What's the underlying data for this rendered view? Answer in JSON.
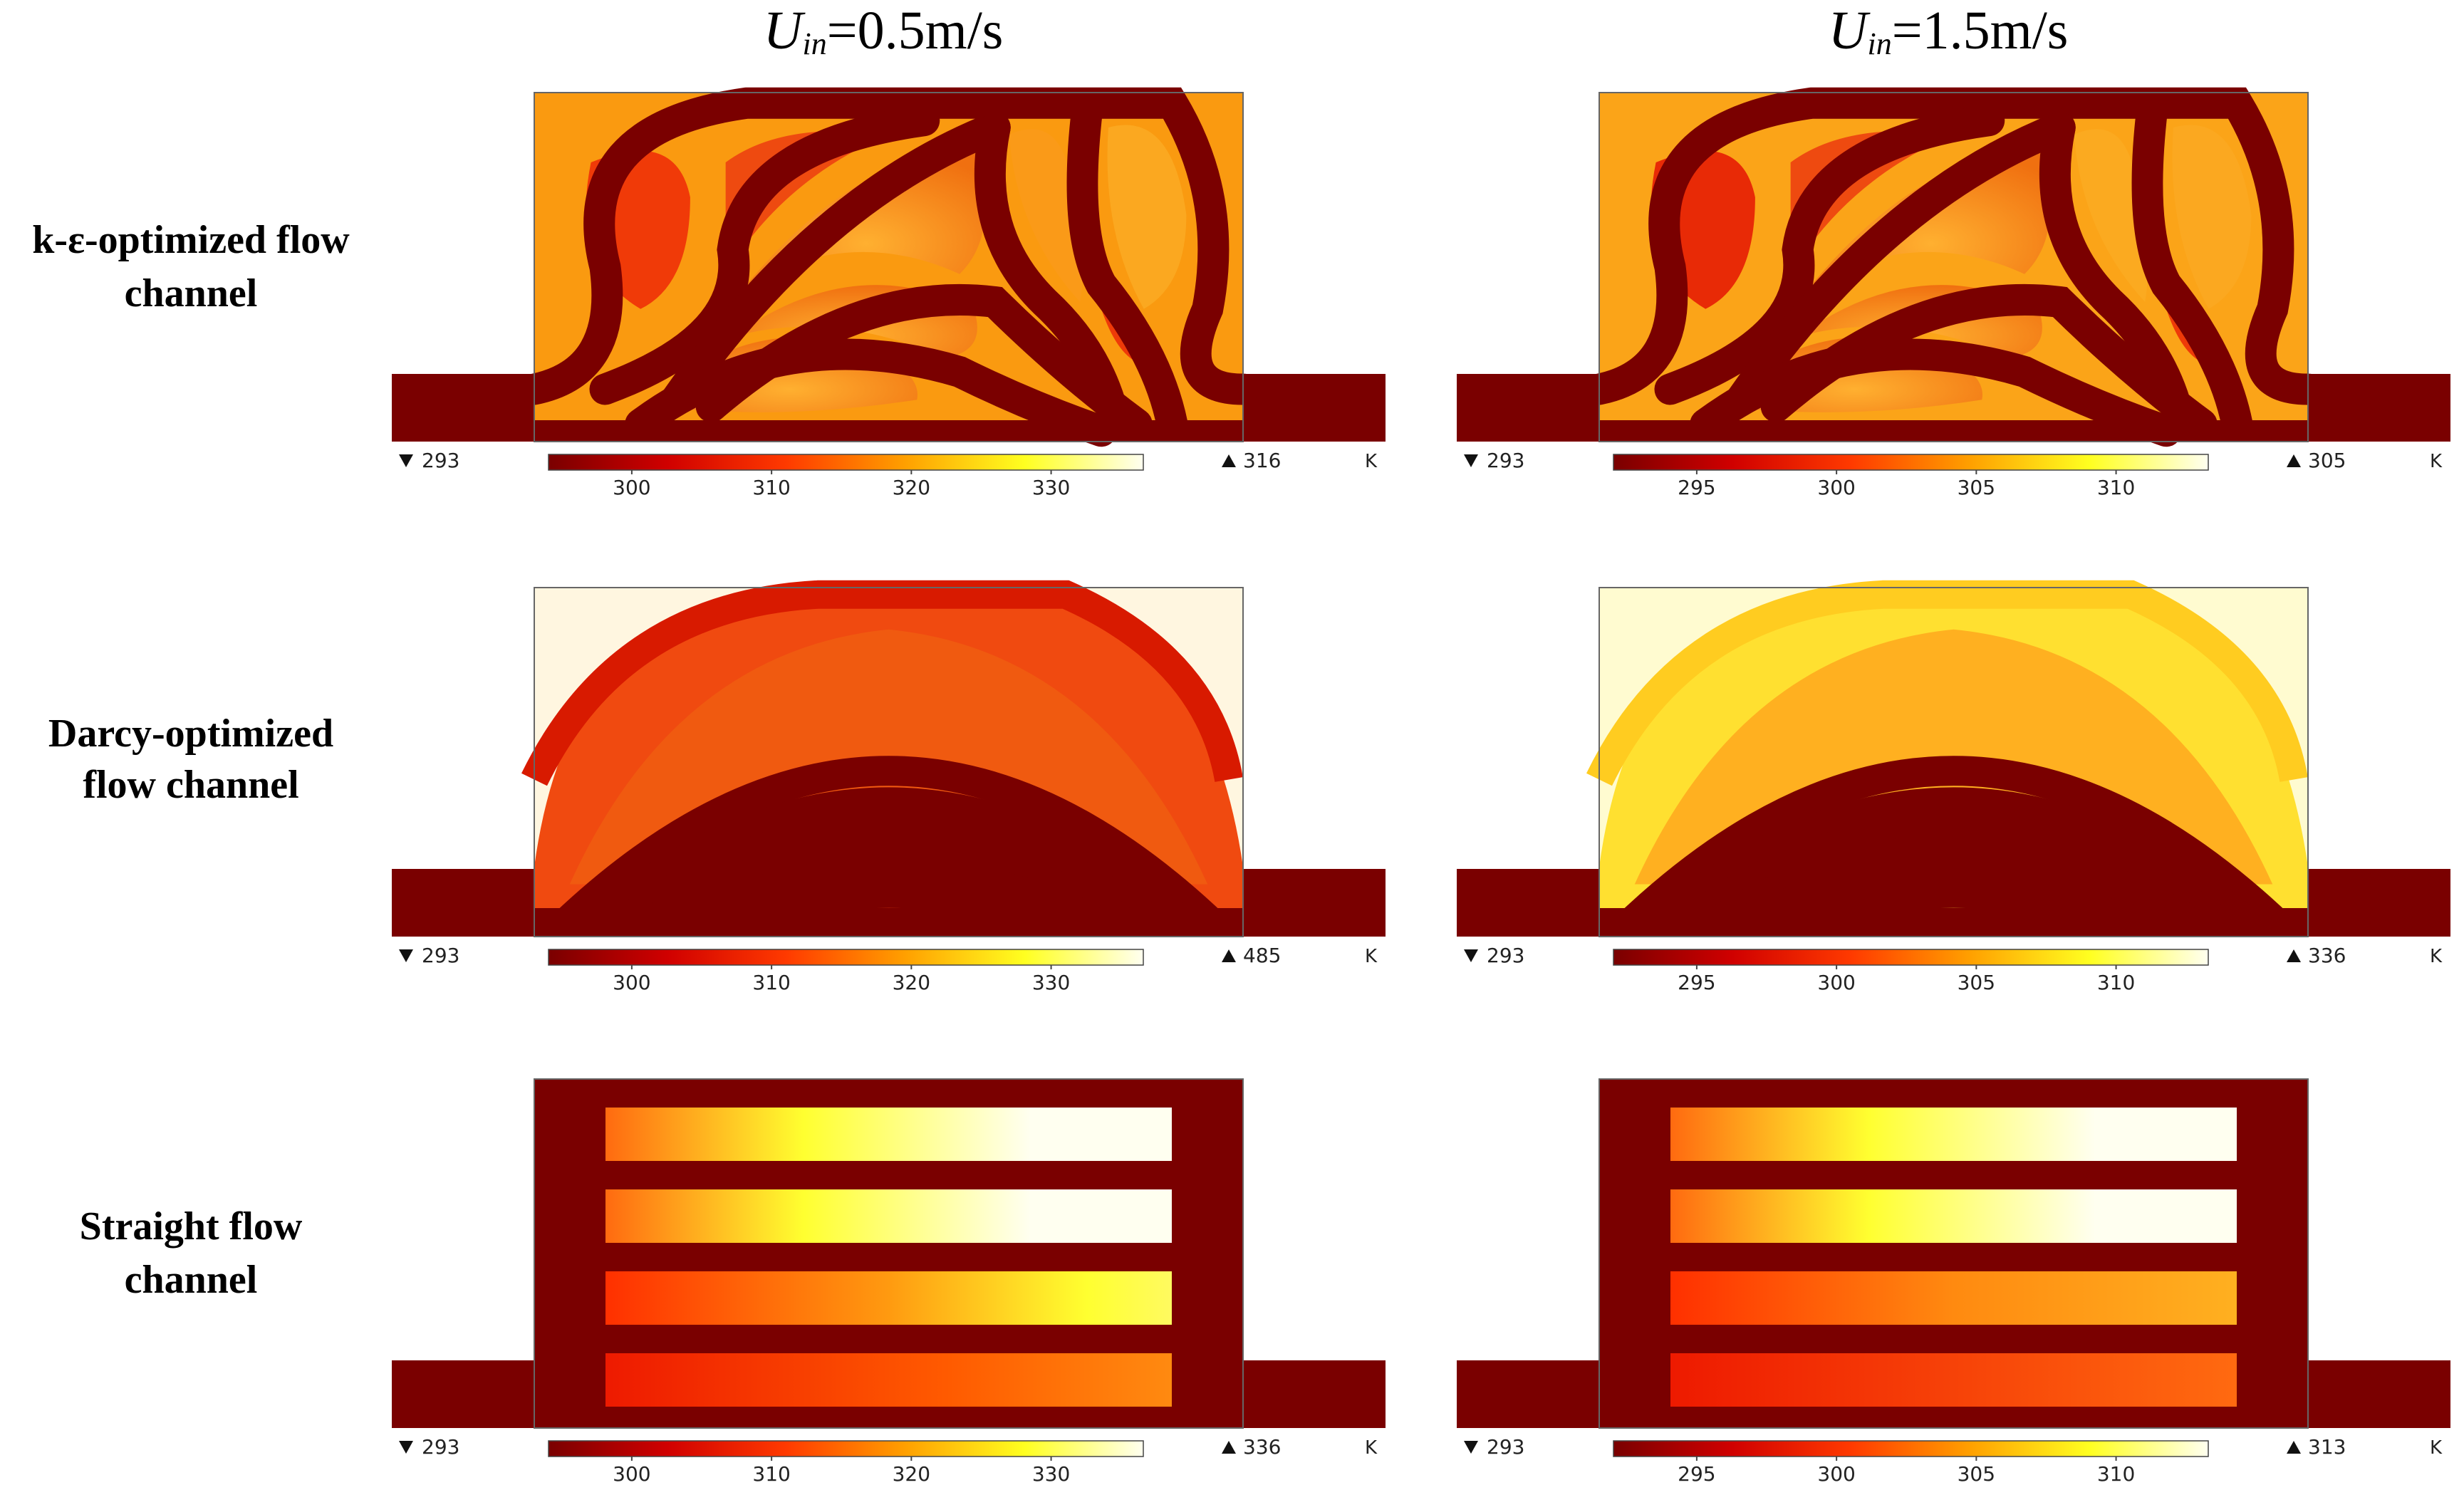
{
  "columns": [
    {
      "var": "U",
      "sub": "in",
      "value": "=0.5m/s"
    },
    {
      "var": "U",
      "sub": "in",
      "value": "=1.5m/s"
    }
  ],
  "rows": [
    {
      "label_lines": [
        "k-ε-optimized flow",
        "channel"
      ],
      "type": "kepsilon"
    },
    {
      "label_lines": [
        "Darcy-optimized",
        "flow channel"
      ],
      "type": "darcy"
    },
    {
      "label_lines": [
        "Straight flow",
        "channel"
      ],
      "type": "straight"
    }
  ],
  "colorbars": [
    [
      {
        "min": "293",
        "max": "316",
        "ticks": [
          "300",
          "310",
          "320",
          "330"
        ],
        "unit": "K"
      },
      {
        "min": "293",
        "max": "305",
        "ticks": [
          "295",
          "300",
          "305",
          "310"
        ],
        "unit": "K"
      }
    ],
    [
      {
        "min": "293",
        "max": "485",
        "ticks": [
          "300",
          "310",
          "320",
          "330"
        ],
        "unit": "K"
      },
      {
        "min": "293",
        "max": "336",
        "ticks": [
          "295",
          "300",
          "305",
          "310"
        ],
        "unit": "K"
      }
    ],
    [
      {
        "min": "293",
        "max": "336",
        "ticks": [
          "300",
          "310",
          "320",
          "330"
        ],
        "unit": "K"
      },
      {
        "min": "293",
        "max": "313",
        "ticks": [
          "295",
          "300",
          "305",
          "310"
        ],
        "unit": "K"
      }
    ]
  ],
  "colors": {
    "dark": "#7a0000",
    "red": "#e01e00",
    "orange": "#f07010",
    "amber": "#fa9a10",
    "yellow": "#ffff20",
    "white": "#fffff0"
  }
}
